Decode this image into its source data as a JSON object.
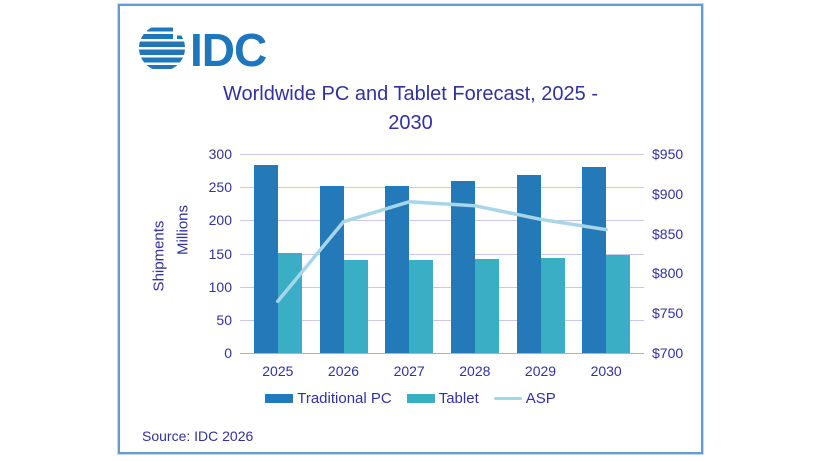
{
  "logo": {
    "text": "IDC",
    "color": "#1E76BC"
  },
  "title": {
    "line1": "Worldwide PC and Tablet Forecast, 2025 -",
    "line2": "2030"
  },
  "source": "Source: IDC 2026",
  "colors": {
    "text": "#31329E",
    "grid": "#CBC6E9",
    "axis_line": "#B3AADC",
    "border": "#649BD2",
    "traditional_pc": "#2479B8",
    "tablet": "#3AAEC4",
    "asp": "#A7D6E9"
  },
  "chart_data": {
    "type": "bar",
    "subtype": "grouped bars with overlaid line (dual axis)",
    "title": "Worldwide PC and Tablet Forecast, 2025 - 2030",
    "categories": [
      "2025",
      "2026",
      "2027",
      "2028",
      "2029",
      "2030"
    ],
    "series": [
      {
        "name": "Traditional PC",
        "type": "bar",
        "axis": "left",
        "color": "#2479B8",
        "values": [
          284,
          252,
          252,
          260,
          268,
          280
        ]
      },
      {
        "name": "Tablet",
        "type": "bar",
        "axis": "left",
        "color": "#3AAEC4",
        "values": [
          151,
          140,
          140,
          141,
          143,
          148
        ]
      },
      {
        "name": "ASP",
        "type": "line",
        "axis": "right",
        "color": "#A7D6E9",
        "values": [
          765,
          865,
          890,
          885,
          868,
          855
        ]
      }
    ],
    "left_axis": {
      "title_lines": [
        "Shipments",
        "Millions"
      ],
      "min": 0,
      "max": 300,
      "step": 50,
      "tick_labels": [
        "300",
        "250",
        "200",
        "150",
        "100",
        "50",
        "0"
      ]
    },
    "right_axis": {
      "min": 700,
      "max": 950,
      "step": 50,
      "tick_labels": [
        "$950",
        "$900",
        "$850",
        "$800",
        "$750",
        "$700"
      ]
    },
    "grid": true,
    "legend_position": "bottom"
  }
}
